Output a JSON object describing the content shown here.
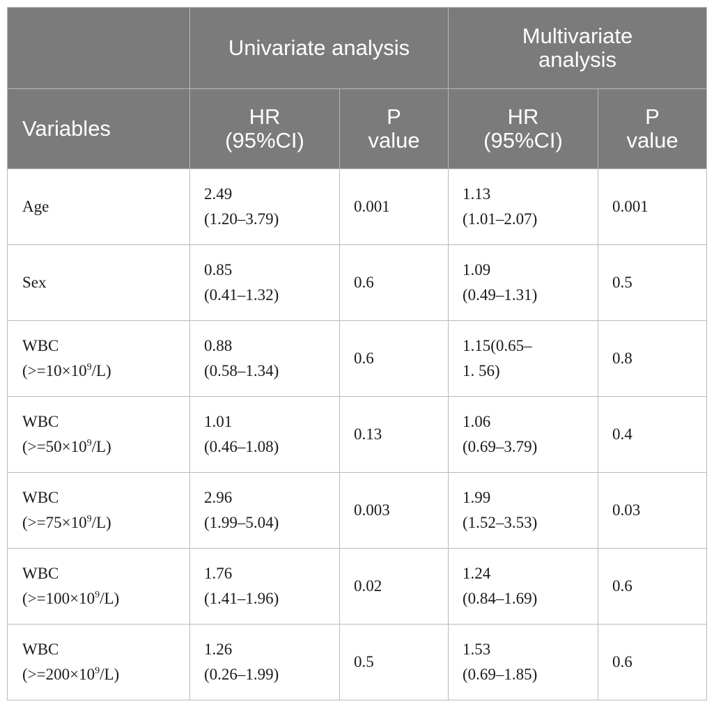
{
  "header": {
    "univariate": "Univariate analysis",
    "multivariate_line1": "Multivariate",
    "multivariate_line2": "analysis",
    "variables": "Variables",
    "hr_line1": "HR",
    "hr_line2": "(95%CI)",
    "p_line1": "P",
    "p_line2": "value"
  },
  "rows": [
    {
      "var_line1": "Age",
      "var_line2": "",
      "uni_hr_line1": "2.49",
      "uni_hr_line2": "(1.20–3.79)",
      "uni_p": "0.001",
      "multi_hr_line1": "1.13",
      "multi_hr_line2": "(1.01–2.07)",
      "multi_p": "0.001"
    },
    {
      "var_line1": "Sex",
      "var_line2": "",
      "uni_hr_line1": "0.85",
      "uni_hr_line2": "(0.41–1.32)",
      "uni_p": "0.6",
      "multi_hr_line1": "1.09",
      "multi_hr_line2": "(0.49–1.31)",
      "multi_p": "0.5"
    },
    {
      "var_line1": "WBC",
      "var_pre": "(>=10×10",
      "var_sup": "9",
      "var_post": "/L)",
      "uni_hr_line1": "0.88",
      "uni_hr_line2": "(0.58–1.34)",
      "uni_p": "0.6",
      "multi_hr_line1": "1.15(0.65–",
      "multi_hr_line2": "1. 56)",
      "multi_p": "0.8"
    },
    {
      "var_line1": "WBC",
      "var_pre": "(>=50×10",
      "var_sup": "9",
      "var_post": "/L)",
      "uni_hr_line1": "1.01",
      "uni_hr_line2": "(0.46–1.08)",
      "uni_p": "0.13",
      "multi_hr_line1": "1.06",
      "multi_hr_line2": "(0.69–3.79)",
      "multi_p": "0.4"
    },
    {
      "var_line1": "WBC",
      "var_pre": "(>=75×10",
      "var_sup": "9",
      "var_post": "/L)",
      "uni_hr_line1": "2.96",
      "uni_hr_line2": "(1.99–5.04)",
      "uni_p": "0.003",
      "multi_hr_line1": "1.99",
      "multi_hr_line2": "(1.52–3.53)",
      "multi_p": "0.03"
    },
    {
      "var_line1": "WBC",
      "var_pre": "(>=100×10",
      "var_sup": "9",
      "var_post": "/L)",
      "uni_hr_line1": "1.76",
      "uni_hr_line2": "(1.41–1.96)",
      "uni_p": "0.02",
      "multi_hr_line1": "1.24",
      "multi_hr_line2": "(0.84–1.69)",
      "multi_p": "0.6"
    },
    {
      "var_line1": "WBC",
      "var_pre": "(>=200×10",
      "var_sup": "9",
      "var_post": "/L)",
      "uni_hr_line1": "1.26",
      "uni_hr_line2": "(0.26–1.99)",
      "uni_p": "0.5",
      "multi_hr_line1": "1.53",
      "multi_hr_line2": "(0.69–1.85)",
      "multi_p": "0.6"
    }
  ]
}
